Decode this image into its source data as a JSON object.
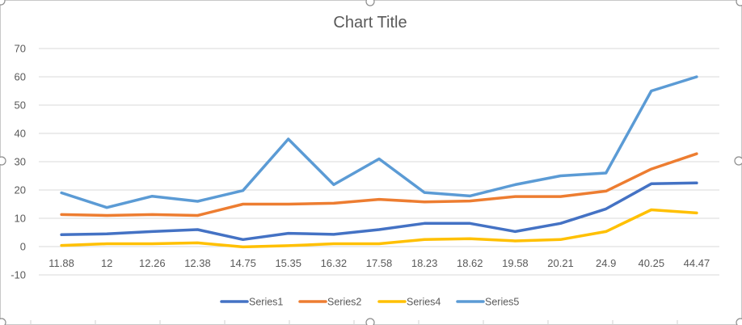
{
  "chart_data": {
    "type": "line",
    "title": "Chart Title",
    "xlabel": "",
    "ylabel": "",
    "categories": [
      "11.88",
      "12",
      "12.26",
      "12.38",
      "14.75",
      "15.35",
      "16.32",
      "17.58",
      "18.23",
      "18.62",
      "19.58",
      "20.21",
      "24.9",
      "40.25",
      "44.47"
    ],
    "ylim": [
      -10,
      70
    ],
    "yticks": [
      -10,
      0,
      10,
      20,
      30,
      40,
      50,
      60,
      70
    ],
    "grid": true,
    "legend_position": "bottom",
    "series": [
      {
        "name": "Series1",
        "color": "#4472c4",
        "values": [
          4.2,
          4.5,
          5.3,
          6,
          2.5,
          4.7,
          4.3,
          6,
          8.2,
          8.2,
          5.3,
          8.2,
          13.3,
          22.2,
          22.5
        ]
      },
      {
        "name": "Series2",
        "color": "#ed7d31",
        "values": [
          11.3,
          11,
          11.3,
          11,
          15,
          15,
          15.3,
          16.7,
          15.8,
          16.1,
          17.7,
          17.7,
          19.6,
          27.4,
          32.8
        ]
      },
      {
        "name": "Series4",
        "color": "#ffc000",
        "values": [
          0.4,
          1,
          1,
          1.3,
          -0.1,
          0.3,
          1,
          1,
          2.5,
          2.8,
          2,
          2.5,
          5.3,
          13,
          11.9
        ]
      },
      {
        "name": "Series5",
        "color": "#5b9bd5",
        "values": [
          19,
          13.8,
          17.8,
          16,
          19.8,
          38,
          21.9,
          31,
          19.1,
          17.9,
          21.9,
          25,
          26,
          55,
          60
        ]
      }
    ]
  }
}
